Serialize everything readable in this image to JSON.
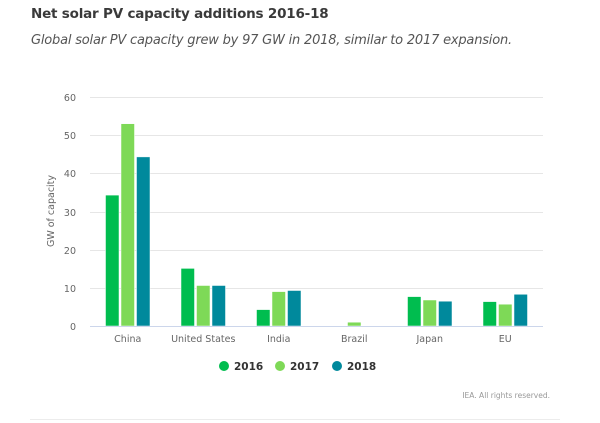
{
  "header": {
    "title": "Net solar PV capacity additions 2016-18",
    "subtitle": "Global solar PV capacity grew by 97 GW in 2018, similar to 2017 expansion."
  },
  "footer": {
    "credits": "IEA. All rights reserved."
  },
  "chart_data": {
    "type": "bar",
    "title": "Net solar PV capacity additions 2016-18",
    "subtitle": "Global solar PV capacity grew by 97 GW in 2018, similar to 2017 expansion.",
    "xlabel": "",
    "ylabel": "GW of capacity",
    "ylim": [
      0,
      60
    ],
    "yticks": [
      0,
      10,
      20,
      30,
      40,
      50,
      60
    ],
    "grid": true,
    "legend_position": "bottom-center",
    "categories": [
      "China",
      "United States",
      "India",
      "Brazil",
      "Japan",
      "EU"
    ],
    "series": [
      {
        "name": "2016",
        "color": "#00bd4f",
        "values": [
          34.3,
          15.1,
          4.3,
          0,
          7.7,
          6.4
        ]
      },
      {
        "name": "2017",
        "color": "#7ed957",
        "values": [
          53.0,
          10.6,
          9.0,
          1.0,
          6.8,
          5.7
        ]
      },
      {
        "name": "2018",
        "color": "#00899c",
        "values": [
          44.3,
          10.6,
          9.3,
          0,
          6.5,
          8.3
        ]
      }
    ],
    "credits": "IEA. All rights reserved."
  }
}
